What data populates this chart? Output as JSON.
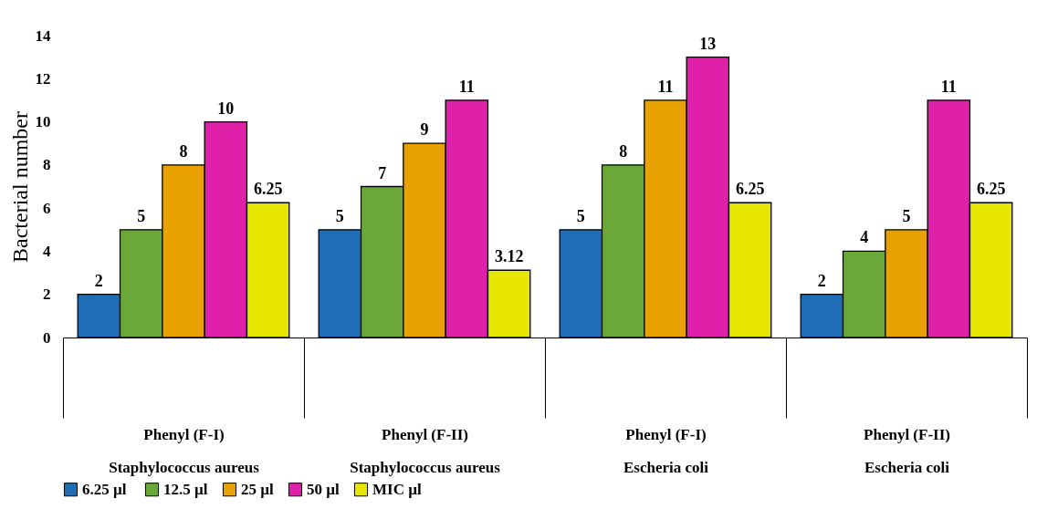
{
  "chart_data": {
    "type": "bar",
    "ylabel": "Bacterial number",
    "categories": [
      "Phenyl (F-I)\nStaphylococcus aureus",
      "Phenyl (F-II)\nStaphylococcus aureus",
      "Phenyl (F-I)\nEscheria coli",
      "Phenyl (F-II)\nEscheria coli"
    ],
    "series": [
      {
        "name": "6.25  µl",
        "color": "#1f6db5",
        "values": [
          2,
          5,
          5,
          2
        ]
      },
      {
        "name": "12.5 µl",
        "color": "#6aa83a",
        "values": [
          5,
          7,
          8,
          4
        ]
      },
      {
        "name": "25 µl",
        "color": "#e8a200",
        "values": [
          8,
          9,
          11,
          5
        ]
      },
      {
        "name": "50 µl",
        "color": "#e020a8",
        "values": [
          10,
          11,
          13,
          11
        ]
      },
      {
        "name": "MIC µl",
        "color": "#e6e600",
        "values": [
          6.25,
          3.12,
          6.25,
          6.25
        ]
      }
    ],
    "ylim": [
      0,
      14
    ],
    "yticks": [
      0,
      2,
      4,
      6,
      8,
      10,
      12,
      14
    ],
    "grid": false,
    "legend": "bottom",
    "data_labels": true
  }
}
